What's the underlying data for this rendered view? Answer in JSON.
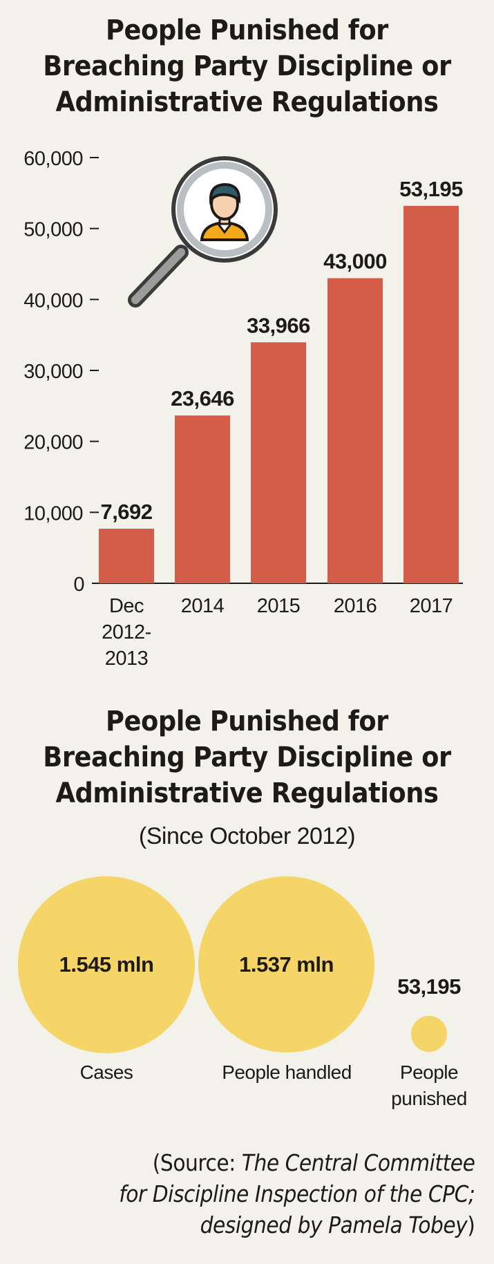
{
  "chart_data": [
    {
      "type": "bar",
      "title_lines": [
        "People Punished for",
        "Breaching Party Discipline or",
        "Administrative Regulations"
      ],
      "categories": [
        [
          "Dec",
          "2012-",
          "2013"
        ],
        [
          "2014"
        ],
        [
          "2015"
        ],
        [
          "2016"
        ],
        [
          "2017"
        ]
      ],
      "values": [
        7692,
        23646,
        33966,
        43000,
        53195
      ],
      "value_labels": [
        "7,692",
        "23,646",
        "33,966",
        "43,000",
        "53,195"
      ],
      "yticks": [
        0,
        10000,
        20000,
        30000,
        40000,
        50000,
        60000
      ],
      "ytick_labels": [
        "0",
        "10,000",
        "20,000",
        "30,000",
        "40,000",
        "50,000",
        "60,000"
      ],
      "ylim": [
        0,
        60000
      ],
      "bar_color": "#d45d49",
      "grid": false
    },
    {
      "type": "bubble",
      "title_lines": [
        "People Punished for",
        "Breaching Party Discipline or",
        "Administrative Regulations"
      ],
      "subtitle": "(Since October 2012)",
      "items": [
        {
          "label": "Cases",
          "value": 1545000,
          "value_label": "1.545 mln"
        },
        {
          "label": "People handled",
          "value": 1537000,
          "value_label": "1.537 mln"
        },
        {
          "label_lines": [
            "People",
            "punished"
          ],
          "value": 53195,
          "value_label": "53,195"
        }
      ],
      "bubble_color": "#f5d567"
    }
  ],
  "source": {
    "prefix": "(Source: ",
    "italic_1": "The Central Committee",
    "italic_2": "for Discipline Inspection of the CPC;",
    "italic_3": "designed by Pamela Tobey",
    "suffix": ")"
  },
  "icon": {
    "name": "magnifier-person-icon"
  }
}
